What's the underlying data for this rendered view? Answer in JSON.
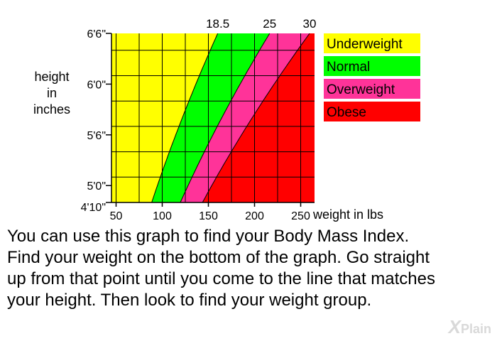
{
  "colors": {
    "underweight": "#ffff00",
    "normal": "#00ff00",
    "overweight": "#ff3399",
    "obese": "#ff0000",
    "grid": "#000000"
  },
  "chart_data": {
    "type": "area",
    "title": "",
    "xlabel": "weight in lbs",
    "ylabel_lines": [
      "height",
      "in",
      "inches"
    ],
    "x_ticks": [
      {
        "value": 50,
        "label": "50"
      },
      {
        "value": 100,
        "label": "100"
      },
      {
        "value": 150,
        "label": "150"
      },
      {
        "value": 200,
        "label": "200"
      },
      {
        "value": 250,
        "label": "250"
      }
    ],
    "y_ticks": [
      {
        "value": 58,
        "label": "4'10\""
      },
      {
        "value": 60,
        "label": "5'0\""
      },
      {
        "value": 66,
        "label": "5'6\""
      },
      {
        "value": 72,
        "label": "6'0\""
      },
      {
        "value": 78,
        "label": "6'6\""
      }
    ],
    "xlim": [
      45,
      265
    ],
    "ylim": [
      58,
      78
    ],
    "x_minor_step": 25,
    "y_minor_step": 3,
    "grid": true,
    "bmi_lines": [
      {
        "bmi": 18.5,
        "label": "18.5"
      },
      {
        "bmi": 25,
        "label": "25"
      },
      {
        "bmi": 30,
        "label": "30"
      }
    ],
    "legend_position": "right",
    "series": [
      {
        "key": "underweight",
        "name": "Underweight",
        "range": "BMI below 18.5"
      },
      {
        "key": "normal",
        "name": "Normal",
        "range": "BMI 18.5 to 25"
      },
      {
        "key": "overweight",
        "name": "Overweight",
        "range": "BMI 25 to 30"
      },
      {
        "key": "obese",
        "name": "Obese",
        "range": "BMI 30 and above"
      }
    ]
  },
  "caption": {
    "lines": [
      "You can use this graph to find your Body Mass Index.",
      "Find your weight on the bottom of the graph. Go straight",
      "up from that point until you come to the line that matches",
      "your height. Then look to find your weight group."
    ]
  },
  "watermark": {
    "text": "Plain",
    "icon": "x-plain-logo-icon"
  }
}
